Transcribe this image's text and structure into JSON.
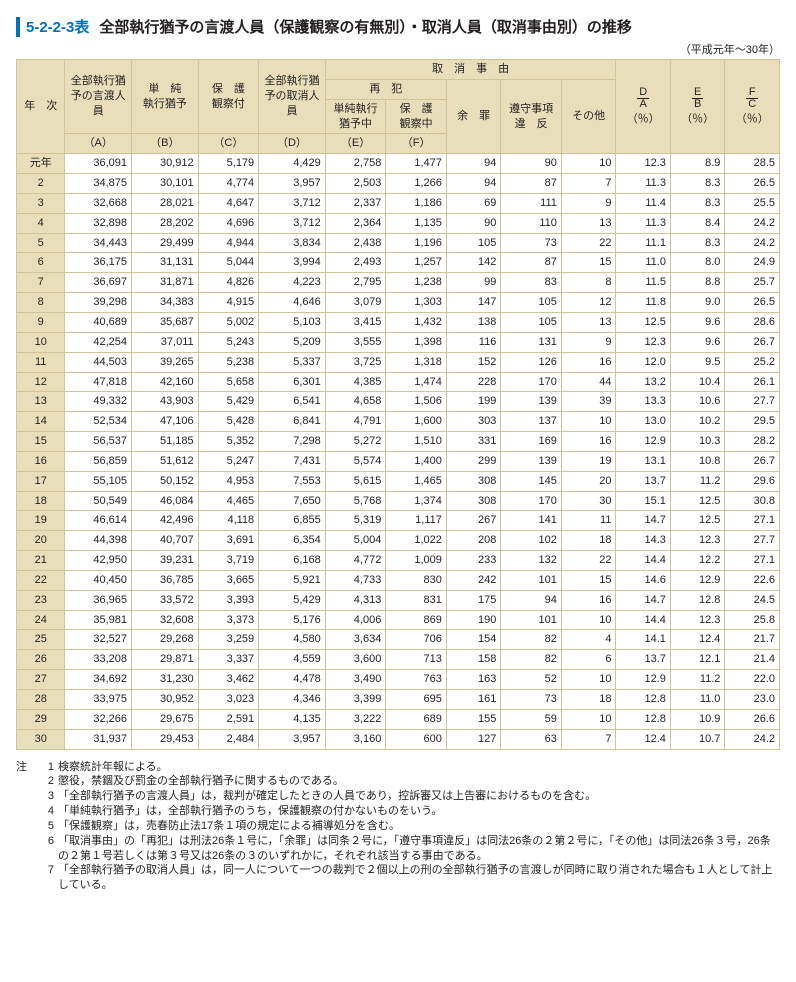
{
  "title": {
    "id": "5-2-2-3表",
    "text": "全部執行猶予の言渡人員（保護観察の有無別）・取消人員（取消事由別）の推移"
  },
  "period": "（平成元年～30年）",
  "header": {
    "year": "年　次",
    "A_top": "全部執行猶予の言渡人員",
    "A": "（A）",
    "B_top": "単　純\n執行猶予",
    "B": "（B）",
    "C_top": "保　護\n観察付",
    "C": "（C）",
    "D_top": "全部執行猶予の取消人員",
    "D": "（D）",
    "cause": "取　消　事　由",
    "saihan": "再　犯",
    "E_top": "単純執行\n猶予中",
    "E": "（E）",
    "F_top": "保　護\n観察中",
    "F": "（F）",
    "yozai": "余　罪",
    "junshu": "遵守事項\n違　反",
    "other": "その他",
    "DA": {
      "num": "D",
      "den": "A",
      "unit": "（％）"
    },
    "EB": {
      "num": "E",
      "den": "B",
      "unit": "（％）"
    },
    "FC": {
      "num": "F",
      "den": "C",
      "unit": "（％）"
    }
  },
  "rows": [
    {
      "year": "元年",
      "A": "36,091",
      "B": "30,912",
      "C": "5,179",
      "D": "4,429",
      "E": "2,758",
      "F": "1,477",
      "yozai": "94",
      "junshu": "90",
      "other": "10",
      "DA": "12.3",
      "EB": "8.9",
      "FC": "28.5"
    },
    {
      "year": "2",
      "A": "34,875",
      "B": "30,101",
      "C": "4,774",
      "D": "3,957",
      "E": "2,503",
      "F": "1,266",
      "yozai": "94",
      "junshu": "87",
      "other": "7",
      "DA": "11.3",
      "EB": "8.3",
      "FC": "26.5"
    },
    {
      "year": "3",
      "A": "32,668",
      "B": "28,021",
      "C": "4,647",
      "D": "3,712",
      "E": "2,337",
      "F": "1,186",
      "yozai": "69",
      "junshu": "111",
      "other": "9",
      "DA": "11.4",
      "EB": "8.3",
      "FC": "25.5"
    },
    {
      "year": "4",
      "A": "32,898",
      "B": "28,202",
      "C": "4,696",
      "D": "3,712",
      "E": "2,364",
      "F": "1,135",
      "yozai": "90",
      "junshu": "110",
      "other": "13",
      "DA": "11.3",
      "EB": "8.4",
      "FC": "24.2"
    },
    {
      "year": "5",
      "A": "34,443",
      "B": "29,499",
      "C": "4,944",
      "D": "3,834",
      "E": "2,438",
      "F": "1,196",
      "yozai": "105",
      "junshu": "73",
      "other": "22",
      "DA": "11.1",
      "EB": "8.3",
      "FC": "24.2"
    },
    {
      "year": "6",
      "A": "36,175",
      "B": "31,131",
      "C": "5,044",
      "D": "3,994",
      "E": "2,493",
      "F": "1,257",
      "yozai": "142",
      "junshu": "87",
      "other": "15",
      "DA": "11.0",
      "EB": "8.0",
      "FC": "24.9"
    },
    {
      "year": "7",
      "A": "36,697",
      "B": "31,871",
      "C": "4,826",
      "D": "4,223",
      "E": "2,795",
      "F": "1,238",
      "yozai": "99",
      "junshu": "83",
      "other": "8",
      "DA": "11.5",
      "EB": "8.8",
      "FC": "25.7"
    },
    {
      "year": "8",
      "A": "39,298",
      "B": "34,383",
      "C": "4,915",
      "D": "4,646",
      "E": "3,079",
      "F": "1,303",
      "yozai": "147",
      "junshu": "105",
      "other": "12",
      "DA": "11.8",
      "EB": "9.0",
      "FC": "26.5"
    },
    {
      "year": "9",
      "A": "40,689",
      "B": "35,687",
      "C": "5,002",
      "D": "5,103",
      "E": "3,415",
      "F": "1,432",
      "yozai": "138",
      "junshu": "105",
      "other": "13",
      "DA": "12.5",
      "EB": "9.6",
      "FC": "28.6"
    },
    {
      "year": "10",
      "A": "42,254",
      "B": "37,011",
      "C": "5,243",
      "D": "5,209",
      "E": "3,555",
      "F": "1,398",
      "yozai": "116",
      "junshu": "131",
      "other": "9",
      "DA": "12.3",
      "EB": "9.6",
      "FC": "26.7"
    },
    {
      "year": "11",
      "A": "44,503",
      "B": "39,265",
      "C": "5,238",
      "D": "5,337",
      "E": "3,725",
      "F": "1,318",
      "yozai": "152",
      "junshu": "126",
      "other": "16",
      "DA": "12.0",
      "EB": "9.5",
      "FC": "25.2"
    },
    {
      "year": "12",
      "A": "47,818",
      "B": "42,160",
      "C": "5,658",
      "D": "6,301",
      "E": "4,385",
      "F": "1,474",
      "yozai": "228",
      "junshu": "170",
      "other": "44",
      "DA": "13.2",
      "EB": "10.4",
      "FC": "26.1"
    },
    {
      "year": "13",
      "A": "49,332",
      "B": "43,903",
      "C": "5,429",
      "D": "6,541",
      "E": "4,658",
      "F": "1,506",
      "yozai": "199",
      "junshu": "139",
      "other": "39",
      "DA": "13.3",
      "EB": "10.6",
      "FC": "27.7"
    },
    {
      "year": "14",
      "A": "52,534",
      "B": "47,106",
      "C": "5,428",
      "D": "6,841",
      "E": "4,791",
      "F": "1,600",
      "yozai": "303",
      "junshu": "137",
      "other": "10",
      "DA": "13.0",
      "EB": "10.2",
      "FC": "29.5"
    },
    {
      "year": "15",
      "A": "56,537",
      "B": "51,185",
      "C": "5,352",
      "D": "7,298",
      "E": "5,272",
      "F": "1,510",
      "yozai": "331",
      "junshu": "169",
      "other": "16",
      "DA": "12.9",
      "EB": "10.3",
      "FC": "28.2"
    },
    {
      "year": "16",
      "A": "56,859",
      "B": "51,612",
      "C": "5,247",
      "D": "7,431",
      "E": "5,574",
      "F": "1,400",
      "yozai": "299",
      "junshu": "139",
      "other": "19",
      "DA": "13.1",
      "EB": "10.8",
      "FC": "26.7"
    },
    {
      "year": "17",
      "A": "55,105",
      "B": "50,152",
      "C": "4,953",
      "D": "7,553",
      "E": "5,615",
      "F": "1,465",
      "yozai": "308",
      "junshu": "145",
      "other": "20",
      "DA": "13.7",
      "EB": "11.2",
      "FC": "29.6"
    },
    {
      "year": "18",
      "A": "50,549",
      "B": "46,084",
      "C": "4,465",
      "D": "7,650",
      "E": "5,768",
      "F": "1,374",
      "yozai": "308",
      "junshu": "170",
      "other": "30",
      "DA": "15.1",
      "EB": "12.5",
      "FC": "30.8"
    },
    {
      "year": "19",
      "A": "46,614",
      "B": "42,496",
      "C": "4,118",
      "D": "6,855",
      "E": "5,319",
      "F": "1,117",
      "yozai": "267",
      "junshu": "141",
      "other": "11",
      "DA": "14.7",
      "EB": "12.5",
      "FC": "27.1"
    },
    {
      "year": "20",
      "A": "44,398",
      "B": "40,707",
      "C": "3,691",
      "D": "6,354",
      "E": "5,004",
      "F": "1,022",
      "yozai": "208",
      "junshu": "102",
      "other": "18",
      "DA": "14.3",
      "EB": "12.3",
      "FC": "27.7"
    },
    {
      "year": "21",
      "A": "42,950",
      "B": "39,231",
      "C": "3,719",
      "D": "6,168",
      "E": "4,772",
      "F": "1,009",
      "yozai": "233",
      "junshu": "132",
      "other": "22",
      "DA": "14.4",
      "EB": "12.2",
      "FC": "27.1"
    },
    {
      "year": "22",
      "A": "40,450",
      "B": "36,785",
      "C": "3,665",
      "D": "5,921",
      "E": "4,733",
      "F": "830",
      "yozai": "242",
      "junshu": "101",
      "other": "15",
      "DA": "14.6",
      "EB": "12.9",
      "FC": "22.6"
    },
    {
      "year": "23",
      "A": "36,965",
      "B": "33,572",
      "C": "3,393",
      "D": "5,429",
      "E": "4,313",
      "F": "831",
      "yozai": "175",
      "junshu": "94",
      "other": "16",
      "DA": "14.7",
      "EB": "12.8",
      "FC": "24.5"
    },
    {
      "year": "24",
      "A": "35,981",
      "B": "32,608",
      "C": "3,373",
      "D": "5,176",
      "E": "4,006",
      "F": "869",
      "yozai": "190",
      "junshu": "101",
      "other": "10",
      "DA": "14.4",
      "EB": "12.3",
      "FC": "25.8"
    },
    {
      "year": "25",
      "A": "32,527",
      "B": "29,268",
      "C": "3,259",
      "D": "4,580",
      "E": "3,634",
      "F": "706",
      "yozai": "154",
      "junshu": "82",
      "other": "4",
      "DA": "14.1",
      "EB": "12.4",
      "FC": "21.7"
    },
    {
      "year": "26",
      "A": "33,208",
      "B": "29,871",
      "C": "3,337",
      "D": "4,559",
      "E": "3,600",
      "F": "713",
      "yozai": "158",
      "junshu": "82",
      "other": "6",
      "DA": "13.7",
      "EB": "12.1",
      "FC": "21.4"
    },
    {
      "year": "27",
      "A": "34,692",
      "B": "31,230",
      "C": "3,462",
      "D": "4,478",
      "E": "3,490",
      "F": "763",
      "yozai": "163",
      "junshu": "52",
      "other": "10",
      "DA": "12.9",
      "EB": "11.2",
      "FC": "22.0"
    },
    {
      "year": "28",
      "A": "33,975",
      "B": "30,952",
      "C": "3,023",
      "D": "4,346",
      "E": "3,399",
      "F": "695",
      "yozai": "161",
      "junshu": "73",
      "other": "18",
      "DA": "12.8",
      "EB": "11.0",
      "FC": "23.0"
    },
    {
      "year": "29",
      "A": "32,266",
      "B": "29,675",
      "C": "2,591",
      "D": "4,135",
      "E": "3,222",
      "F": "689",
      "yozai": "155",
      "junshu": "59",
      "other": "10",
      "DA": "12.8",
      "EB": "10.9",
      "FC": "26.6"
    },
    {
      "year": "30",
      "A": "31,937",
      "B": "29,453",
      "C": "2,484",
      "D": "3,957",
      "E": "3,160",
      "F": "600",
      "yozai": "127",
      "junshu": "63",
      "other": "7",
      "DA": "12.4",
      "EB": "10.7",
      "FC": "24.2"
    }
  ],
  "notes_label": "注",
  "notes": [
    {
      "n": "1",
      "t": "検察統計年報による。"
    },
    {
      "n": "2",
      "t": "懲役，禁錮及び罰金の全部執行猶予に関するものである。"
    },
    {
      "n": "3",
      "t": "「全部執行猶予の言渡人員」は，裁判が確定したときの人員であり，控訴審又は上告審におけるものを含む。"
    },
    {
      "n": "4",
      "t": "「単純執行猶予」は，全部執行猶予のうち，保護観察の付かないものをいう。"
    },
    {
      "n": "5",
      "t": "「保護観察」は，売春防止法17条１項の規定による補導処分を含む。"
    },
    {
      "n": "6",
      "t": "「取消事由」の「再犯」は刑法26条１号に，「余罪」は同条２号に，「遵守事項違反」は同法26条の２第２号に，「その他」は同法26条３号，26条の２第１号若しくは第３号又は26条の３のいずれかに，それぞれ該当する事由である。"
    },
    {
      "n": "7",
      "t": "「全部執行猶予の取消人員」は，同一人について一つの裁判で２個以上の刑の全部執行猶予の言渡しが同時に取り消された場合も１人として計上している。"
    }
  ],
  "style": {
    "header_bg": "#e8dfba",
    "border_color": "#d2c49a",
    "accent_color": "#0071bc",
    "text_color": "#231f20",
    "background": "#ffffff"
  }
}
